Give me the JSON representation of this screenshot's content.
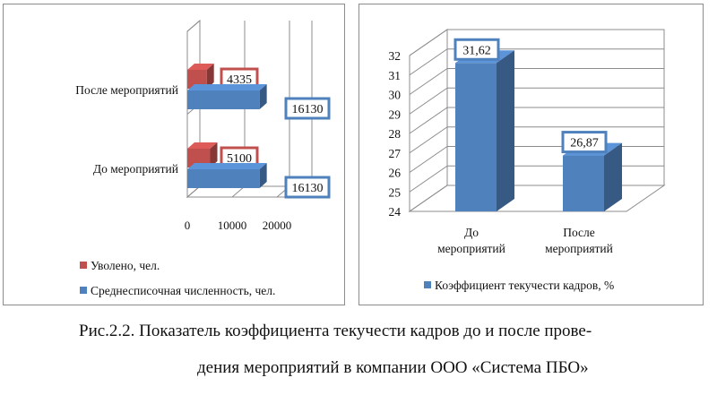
{
  "chart_data": [
    {
      "type": "bar",
      "orientation": "horizontal",
      "categories": [
        "После мероприятий",
        "До мероприятий"
      ],
      "series": [
        {
          "name": "Уволено, чел.",
          "values": [
            4335,
            5100
          ],
          "labels": [
            "4335",
            "5100"
          ],
          "color": "#c0504d"
        },
        {
          "name": "Среднесписочная численность, чел.",
          "values": [
            16130,
            16130
          ],
          "labels": [
            "16130",
            "16130"
          ],
          "color": "#4f81bd"
        }
      ],
      "xticks": [
        "0",
        "10000",
        "20000"
      ],
      "xlim": [
        0,
        25000
      ],
      "grid": true,
      "legend": "bottom",
      "label_border_colors": {
        "red": "#c0504d",
        "blue": "#4f81bd"
      }
    },
    {
      "type": "bar",
      "categories": [
        "До мероприятий",
        "После мероприятий"
      ],
      "category_lines": [
        [
          "До",
          "мероприятий"
        ],
        [
          "После",
          "мероприятий"
        ]
      ],
      "series": [
        {
          "name": "Коэффициент текучести кадров, %",
          "values": [
            31.62,
            26.87
          ],
          "labels": [
            "31,62",
            "26,87"
          ],
          "color": "#4f81bd"
        }
      ],
      "yticks": [
        "24",
        "25",
        "26",
        "27",
        "28",
        "29",
        "30",
        "31",
        "32"
      ],
      "ylim": [
        24,
        32
      ],
      "grid": true,
      "legend": "bottom"
    }
  ],
  "caption": {
    "line1": "Рис.2.2. Показатель коэффициента текучести кадров до и после прове-",
    "line2": "дения мероприятий в компании ООО «Система ПБО»"
  }
}
